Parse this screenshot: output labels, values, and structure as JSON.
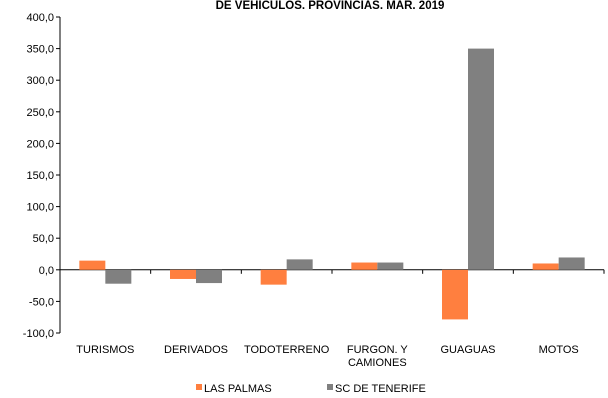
{
  "chart_data": {
    "type": "bar",
    "title": "DE VEHÍCULOS. PROVINCIAS. MAR. 2019",
    "categories": [
      "TURISMOS",
      "DERIVADOS",
      "TODOTERRENO",
      "FURGON. Y CAMIONES",
      "GUAGUAS",
      "MOTOS"
    ],
    "category_lines": [
      [
        "TURISMOS"
      ],
      [
        "DERIVADOS"
      ],
      [
        "TODOTERRENO"
      ],
      [
        "FURGON. Y",
        "CAMIONES"
      ],
      [
        "GUAGUAS"
      ],
      [
        "MOTOS"
      ]
    ],
    "series": [
      {
        "name": "LAS PALMAS",
        "color": "#ff7f3f",
        "values": [
          14.5,
          -14.5,
          -23.5,
          11.5,
          -78.5,
          10.0
        ]
      },
      {
        "name": "SC DE TENERIFE",
        "color": "#808080",
        "values": [
          -22.0,
          -21.0,
          16.5,
          11.5,
          350.0,
          19.5
        ]
      }
    ],
    "ylim": [
      -100,
      400
    ],
    "yticks": [
      "-100,0",
      "-50,0",
      "0,0",
      "50,0",
      "100,0",
      "150,0",
      "200,0",
      "250,0",
      "300,0",
      "350,0",
      "400,0"
    ],
    "ytick_values": [
      -100,
      -50,
      0,
      50,
      100,
      150,
      200,
      250,
      300,
      350,
      400
    ],
    "grid": false,
    "legend_position": "bottom"
  }
}
